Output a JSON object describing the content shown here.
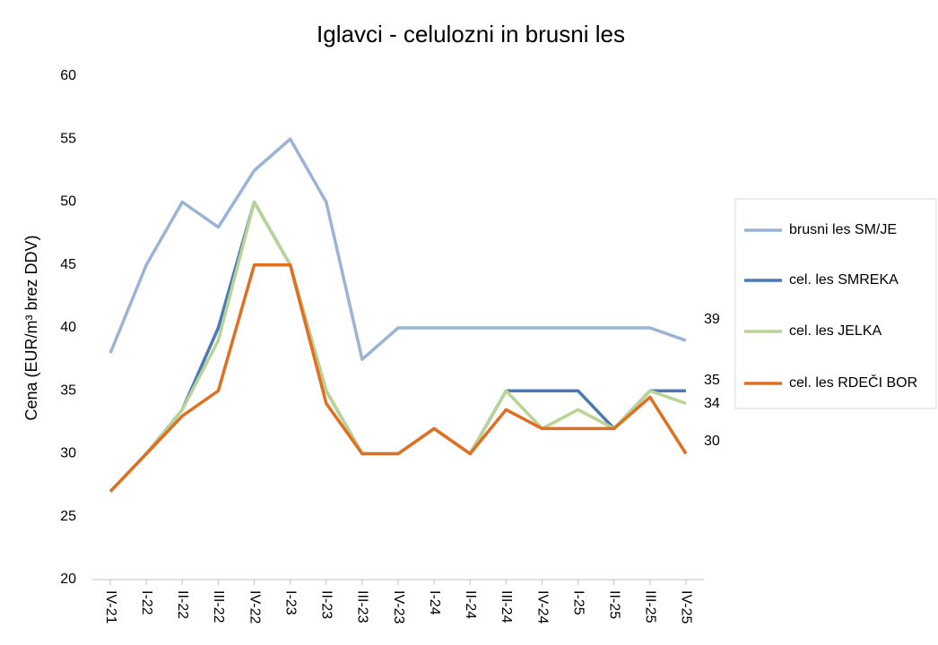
{
  "chart_data": {
    "type": "line",
    "title": "Iglavci - celulozni in brusni les",
    "y_label": "Cena (EUR/m³ brez DDV)",
    "categories": [
      "IV-21",
      "I-22",
      "II-22",
      "III-22",
      "IV-22",
      "I-23",
      "II-23",
      "III-23",
      "IV-23",
      "I-24",
      "II-24",
      "III-24",
      "IV-24",
      "I-25",
      "II-25",
      "III-25",
      "IV-25"
    ],
    "series": [
      {
        "name": "brusni les SM/JE",
        "color": "#9ab3d6",
        "values": [
          38,
          45,
          50,
          48,
          52.5,
          55,
          50,
          37.5,
          40,
          40,
          40,
          40,
          40,
          40,
          40,
          40,
          39
        ]
      },
      {
        "name": "cel. les SMREKA",
        "color": "#4a7ab5",
        "values": [
          27,
          30,
          33.5,
          40,
          50,
          45,
          35,
          30,
          30,
          32,
          30,
          35,
          35,
          35,
          32,
          35,
          35
        ]
      },
      {
        "name": "cel. les JELKA",
        "color": "#b9d396",
        "values": [
          27,
          30,
          33.5,
          39,
          50,
          45,
          35,
          30,
          30,
          32,
          30,
          35,
          32,
          33.5,
          32,
          35,
          34
        ]
      },
      {
        "name": "cel. les RDEČI BOR",
        "color": "#e07020",
        "values": [
          27,
          30,
          33,
          35,
          45,
          45,
          34,
          30,
          30,
          32,
          30,
          33.5,
          32,
          32,
          32,
          34.5,
          30
        ]
      }
    ],
    "ylim": [
      20,
      60
    ],
    "yticks": [
      20,
      25,
      30,
      35,
      40,
      45,
      50,
      55,
      60
    ],
    "grid": false,
    "legend": "right"
  }
}
